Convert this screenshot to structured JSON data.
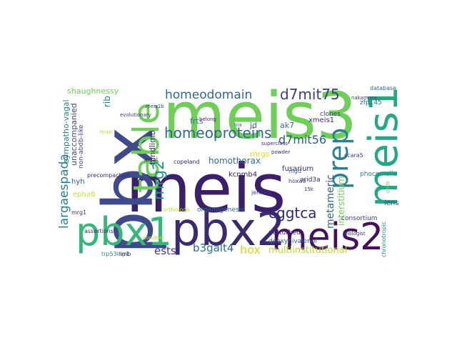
{
  "cloud": {
    "words": [
      {
        "text": "meis3",
        "color": "#6ece58"
      },
      {
        "text": "meis",
        "color": "#3b1f6b"
      },
      {
        "text": "pbx",
        "color": "#3e4a89"
      },
      {
        "text": "pbx2",
        "color": "#3b2a6e"
      },
      {
        "text": "pbx1",
        "color": "#35b779"
      },
      {
        "text": "meis2",
        "color": "#46105e"
      },
      {
        "text": "meis1",
        "color": "#22a884"
      },
      {
        "text": "table",
        "color": "#6ece58"
      },
      {
        "text": "prep",
        "color": "#2a7f8e"
      },
      {
        "text": "homeodomain",
        "color": "#31688e"
      },
      {
        "text": "d7mit75",
        "color": "#3b3d80"
      },
      {
        "text": "homeoproteins",
        "color": "#31688e"
      },
      {
        "text": "d7mit56",
        "color": "#2c5c8a"
      },
      {
        "text": "cggtca",
        "color": "#2c2c6f"
      },
      {
        "text": "mrg2",
        "color": "#20938c"
      },
      {
        "text": "largaespada",
        "color": "#277f8e"
      },
      {
        "text": "b3galt4",
        "color": "#2a6e8e"
      },
      {
        "text": "ests",
        "color": "#3b3d80"
      },
      {
        "text": "metameric",
        "color": "#31688e"
      },
      {
        "text": "hox",
        "color": "#d8d51f"
      },
      {
        "text": "homothorax",
        "color": "#31688e"
      },
      {
        "text": "interstitium",
        "color": "#6ece58"
      },
      {
        "text": "multiinstitutional",
        "color": "#b5de2b"
      },
      {
        "text": "sympatho-vagal",
        "color": "#25848e"
      },
      {
        "text": "unaccompanied",
        "color": "#3b4a88"
      },
      {
        "text": "non-abdb-like",
        "color": "#3e4a89"
      },
      {
        "text": "shaughnessy",
        "color": "#6ece58"
      },
      {
        "text": "hindlimb",
        "color": "#46337e"
      },
      {
        "text": "rib",
        "color": "#26828e"
      },
      {
        "text": "frts",
        "color": "#2a788e"
      },
      {
        "text": "mrgs",
        "color": "#d8e219"
      },
      {
        "text": "jd",
        "color": "#31688e"
      },
      {
        "text": "ak7",
        "color": "#2b6f8e"
      },
      {
        "text": "xmeis1",
        "color": "#3b2a6e"
      },
      {
        "text": "kcnmb4",
        "color": "#35216b"
      },
      {
        "text": "fusarium",
        "color": "#3b2a6e"
      },
      {
        "text": "arid3a",
        "color": "#3b2a6e"
      },
      {
        "text": "lens",
        "color": "#3e4a89"
      },
      {
        "text": "hyh",
        "color": "#2c5c8a"
      },
      {
        "text": "epha8",
        "color": "#c9dc33"
      },
      {
        "text": "copeland",
        "color": "#3b2a6e"
      },
      {
        "text": "jenkins",
        "color": "#3b3d80"
      },
      {
        "text": "mgd",
        "color": "#31688e"
      },
      {
        "text": "phocomelia",
        "color": "#21918c"
      },
      {
        "text": "clones",
        "color": "#3b3d80"
      },
      {
        "text": "consortium",
        "color": "#3b3d80"
      },
      {
        "text": "perturbed",
        "color": "#3b2a6e"
      },
      {
        "text": "deoxynivalenol",
        "color": "#31688e"
      },
      {
        "text": "assertions",
        "color": "#3b2a6e"
      },
      {
        "text": "orthologs",
        "color": "#b5de2b"
      },
      {
        "text": "organogenesis",
        "color": "#31688e"
      },
      {
        "text": "precompaction",
        "color": "#3b2a6e"
      },
      {
        "text": "axial",
        "color": "#3b2a6e"
      },
      {
        "text": "mrg1",
        "color": "#3b2a6e"
      },
      {
        "text": "trp53inp1",
        "color": "#2c8a8e"
      },
      {
        "text": "limb",
        "color": "#3b2a6e"
      },
      {
        "text": "scara5",
        "color": "#3b3d80"
      },
      {
        "text": "zfp145",
        "color": "#2a6e8e"
      },
      {
        "text": "database",
        "color": "#31688e"
      },
      {
        "text": "evolutionary",
        "color": "#46337e"
      },
      {
        "text": "meis1b",
        "color": "#3b3d80"
      },
      {
        "text": "hoxa9",
        "color": "#3b3d80"
      },
      {
        "text": "nia",
        "color": "#31688e"
      },
      {
        "text": "belong",
        "color": "#3b2a6e"
      },
      {
        "text": "hrasl",
        "color": "#b5de2b"
      },
      {
        "text": "nakamura",
        "color": "#3b3d80"
      },
      {
        "text": "chronotropic",
        "color": "#21918c"
      },
      {
        "text": "biologist",
        "color": "#46337e"
      },
      {
        "text": "superclass",
        "color": "#3b2a6e"
      },
      {
        "text": "powder",
        "color": "#3b2a6e"
      },
      {
        "text": "portable",
        "color": "#b5de2b"
      },
      {
        "text": "pads",
        "color": "#6ece58"
      },
      {
        "text": "15k",
        "color": "#3b2a6e"
      }
    ]
  }
}
